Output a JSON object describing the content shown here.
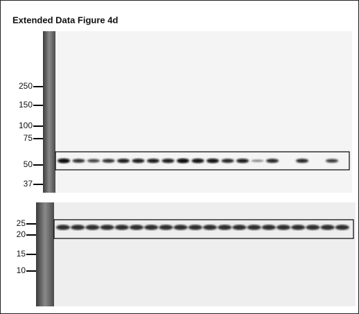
{
  "title": "Extended Data Figure 4d",
  "blots": [
    {
      "markers": [
        250,
        150,
        100,
        75,
        50,
        37
      ]
    },
    {
      "markers": [
        25,
        20,
        15,
        10
      ]
    }
  ]
}
